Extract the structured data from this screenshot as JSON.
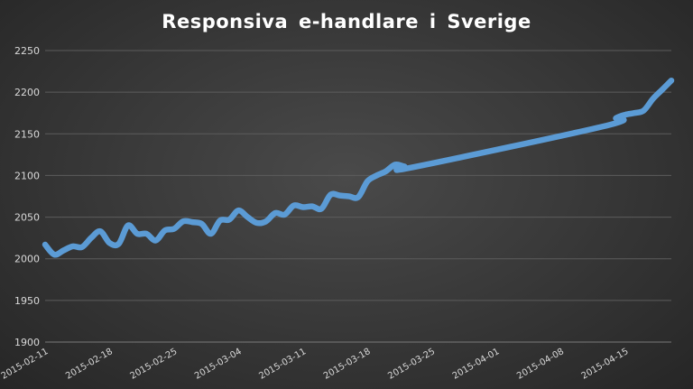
{
  "chart_data": {
    "type": "line",
    "title": "Responsiva  e-handlare  i Sverige",
    "xlabel": "",
    "ylabel": "",
    "ylim": [
      1900,
      2250
    ],
    "yticks": [
      1900,
      1950,
      2000,
      2050,
      2100,
      2150,
      2200,
      2250
    ],
    "xticks": [
      "2015-02-11",
      "2015-02-18",
      "2015-02-25",
      "2015-03-04",
      "2015-03-11",
      "2015-03-18",
      "2015-03-25",
      "2015-04-01",
      "2015-04-08",
      "2015-04-15"
    ],
    "grid": true,
    "line_color": "#5b9bd5",
    "x": [
      "2015-02-11",
      "2015-02-12",
      "2015-02-13",
      "2015-02-14",
      "2015-02-15",
      "2015-02-16",
      "2015-02-17",
      "2015-02-18",
      "2015-02-19",
      "2015-02-20",
      "2015-02-21",
      "2015-02-22",
      "2015-02-23",
      "2015-02-24",
      "2015-02-25",
      "2015-02-26",
      "2015-02-27",
      "2015-02-28",
      "2015-03-01",
      "2015-03-02",
      "2015-03-03",
      "2015-03-04",
      "2015-03-05",
      "2015-03-06",
      "2015-03-07",
      "2015-03-08",
      "2015-03-09",
      "2015-03-10",
      "2015-03-11",
      "2015-03-12",
      "2015-03-13",
      "2015-03-14",
      "2015-03-15",
      "2015-03-16",
      "2015-03-17",
      "2015-03-18",
      "2015-03-19",
      "2015-03-20",
      "2015-03-21",
      "2015-03-22",
      "2015-03-23",
      "2015-04-13",
      "2015-04-14",
      "2015-04-15",
      "2015-04-16",
      "2015-04-17",
      "2015-04-18",
      "2015-04-19",
      "2015-04-20"
    ],
    "values": [
      2017,
      2005,
      2010,
      2015,
      2014,
      2025,
      2033,
      2019,
      2018,
      2040,
      2030,
      2030,
      2022,
      2034,
      2036,
      2045,
      2044,
      2042,
      2030,
      2046,
      2047,
      2058,
      2050,
      2043,
      2045,
      2055,
      2053,
      2064,
      2062,
      2063,
      2060,
      2077,
      2076,
      2075,
      2074,
      2093,
      2100,
      2105,
      2113,
      2111,
      2110,
      2160,
      2169,
      2173,
      2175,
      2178,
      2192,
      2203,
      2214
    ]
  }
}
